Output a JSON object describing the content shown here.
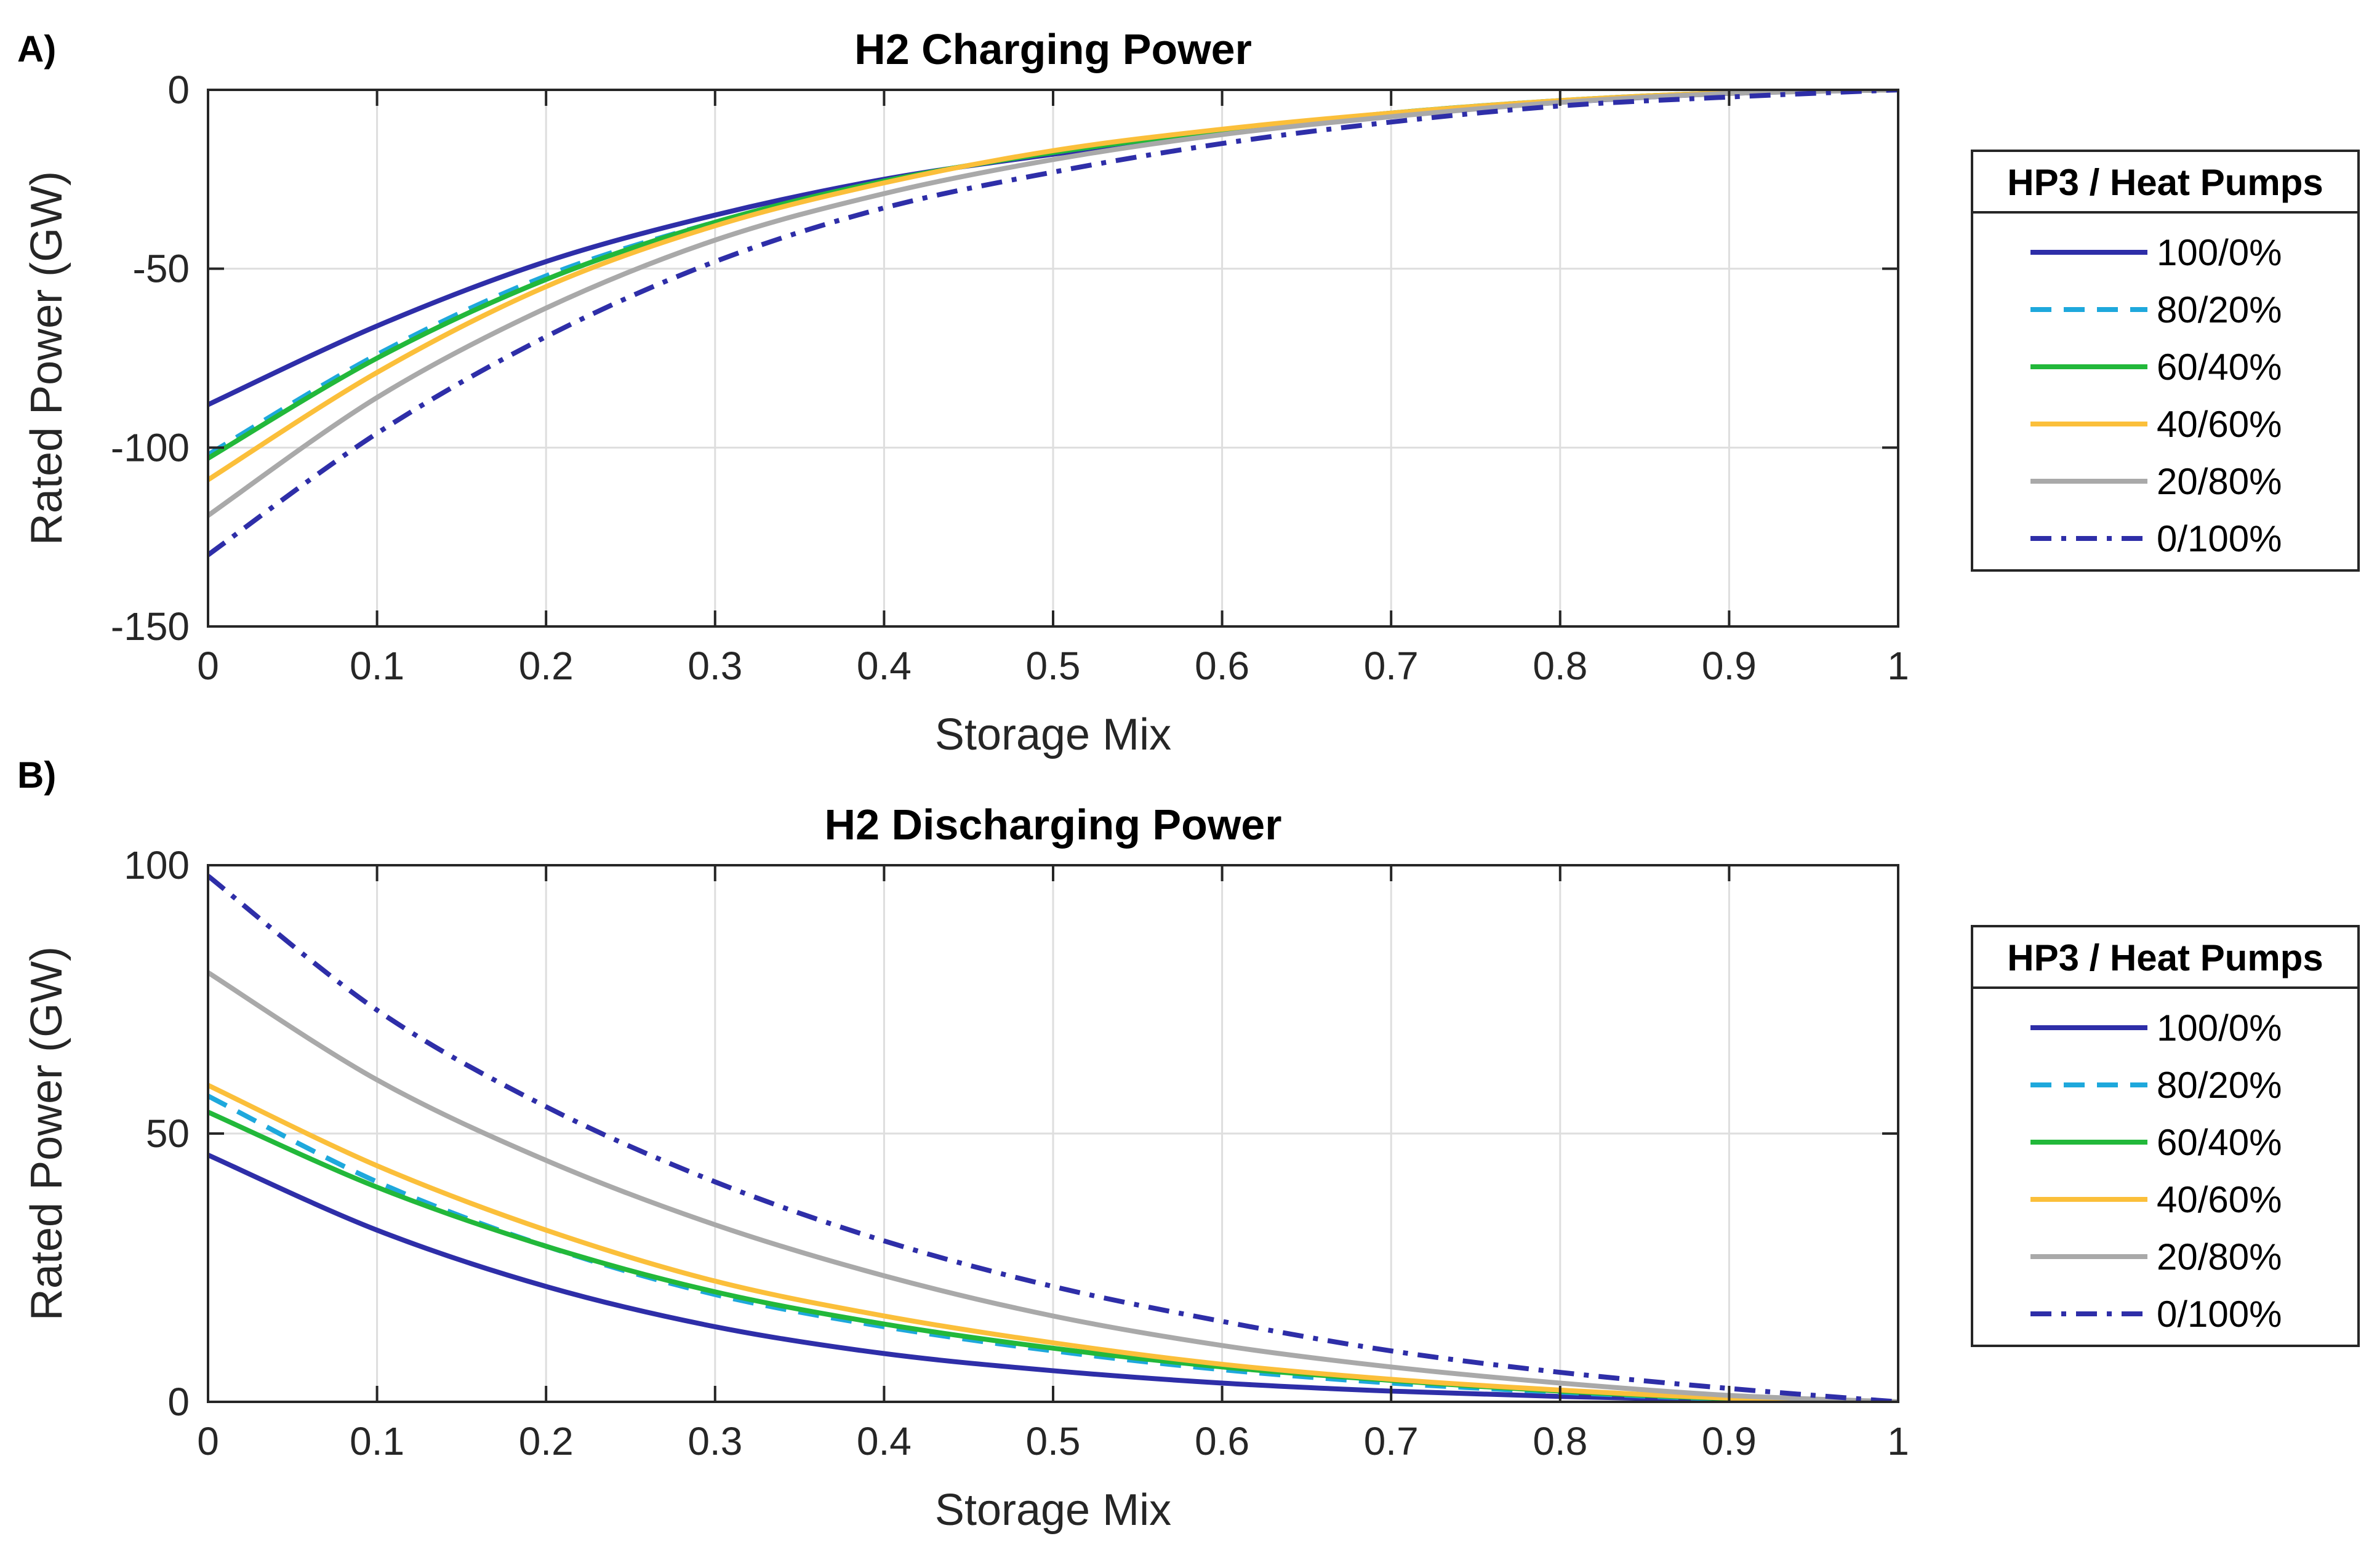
{
  "chart_data": [
    {
      "type": "line",
      "panel_label": "A)",
      "title": "H2 Charging Power",
      "xlabel": "Storage Mix",
      "ylabel": "Rated Power (GW)",
      "xlim": [
        0,
        1
      ],
      "ylim": [
        -150,
        0
      ],
      "xticks": [
        0,
        0.1,
        0.2,
        0.3,
        0.4,
        0.5,
        0.6,
        0.7,
        0.8,
        0.9,
        1
      ],
      "xtick_labels": [
        "0",
        "0.1",
        "0.2",
        "0.3",
        "0.4",
        "0.5",
        "0.6",
        "0.7",
        "0.8",
        "0.9",
        "1"
      ],
      "yticks": [
        0,
        -50,
        -100,
        -150
      ],
      "ytick_labels": [
        "0",
        "-50",
        "-100",
        "-150"
      ],
      "grid": true,
      "legend_title": "HP3 / Heat Pumps",
      "legend_position": "right",
      "x": [
        0,
        0.1,
        0.2,
        0.3,
        0.4,
        0.5,
        0.6,
        0.7,
        0.8,
        0.9,
        1
      ],
      "series": [
        {
          "name": "100/0%",
          "color": "#2e2ea8",
          "dash": "solid",
          "values": [
            -88,
            -66,
            -48,
            -35,
            -25,
            -18,
            -12,
            -7,
            -3.5,
            -1,
            0
          ]
        },
        {
          "name": "80/20%",
          "color": "#1ea8dc",
          "dash": "dashed",
          "values": [
            -102,
            -74,
            -52,
            -37,
            -25.5,
            -17.5,
            -11.5,
            -6.5,
            -3,
            -0.8,
            0
          ]
        },
        {
          "name": "60/40%",
          "color": "#22b83a",
          "dash": "solid",
          "values": [
            -103,
            -75,
            -53,
            -37,
            -25.5,
            -17.5,
            -11.5,
            -6.5,
            -3,
            -0.8,
            0
          ]
        },
        {
          "name": "40/60%",
          "color": "#fbbf3a",
          "dash": "solid",
          "values": [
            -109,
            -79,
            -55,
            -38,
            -26,
            -17,
            -11,
            -6.5,
            -3,
            -0.8,
            0
          ]
        },
        {
          "name": "20/80%",
          "color": "#a9a9a9",
          "dash": "solid",
          "values": [
            -119,
            -86,
            -61,
            -42,
            -29,
            -19.5,
            -12.5,
            -7.5,
            -3.5,
            -1,
            0
          ]
        },
        {
          "name": "0/100%",
          "color": "#2e2ea8",
          "dash": "dashdot",
          "values": [
            -130,
            -96,
            -69,
            -48,
            -33,
            -23,
            -15,
            -9,
            -4.5,
            -2,
            0
          ]
        }
      ]
    },
    {
      "type": "line",
      "panel_label": "B)",
      "title": "H2 Discharging Power",
      "xlabel": "Storage Mix",
      "ylabel": "Rated Power (GW)",
      "xlim": [
        0,
        1
      ],
      "ylim": [
        0,
        100
      ],
      "xticks": [
        0,
        0.1,
        0.2,
        0.3,
        0.4,
        0.5,
        0.6,
        0.7,
        0.8,
        0.9,
        1
      ],
      "xtick_labels": [
        "0",
        "0.1",
        "0.2",
        "0.3",
        "0.4",
        "0.5",
        "0.6",
        "0.7",
        "0.8",
        "0.9",
        "1"
      ],
      "yticks": [
        0,
        50,
        100
      ],
      "ytick_labels": [
        "0",
        "50",
        "100"
      ],
      "grid": true,
      "legend_title": "HP3 / Heat Pumps",
      "legend_position": "right",
      "x": [
        0,
        0.1,
        0.2,
        0.3,
        0.4,
        0.5,
        0.6,
        0.7,
        0.8,
        0.9,
        1
      ],
      "series": [
        {
          "name": "100/0%",
          "color": "#2e2ea8",
          "dash": "solid",
          "values": [
            46,
            32,
            21.5,
            14,
            9,
            5.8,
            3.5,
            2,
            1,
            0.3,
            0
          ]
        },
        {
          "name": "80/20%",
          "color": "#1ea8dc",
          "dash": "dashed",
          "values": [
            57,
            41,
            29,
            20,
            14,
            9.5,
            6,
            3.5,
            1.8,
            0.5,
            0
          ]
        },
        {
          "name": "60/40%",
          "color": "#22b83a",
          "dash": "solid",
          "values": [
            54,
            40,
            29,
            20.5,
            14.5,
            10,
            6.5,
            4,
            2,
            0.6,
            0
          ]
        },
        {
          "name": "40/60%",
          "color": "#fbbf3a",
          "dash": "solid",
          "values": [
            59,
            44,
            32,
            22.5,
            16,
            11,
            7,
            4.2,
            2.2,
            0.7,
            0
          ]
        },
        {
          "name": "20/80%",
          "color": "#a9a9a9",
          "dash": "solid",
          "values": [
            80,
            60,
            45,
            33,
            23.5,
            16,
            10.5,
            6.5,
            3.5,
            1.2,
            0
          ]
        },
        {
          "name": "0/100%",
          "color": "#2e2ea8",
          "dash": "dashdot",
          "values": [
            98,
            73,
            55,
            41,
            30,
            21.5,
            15,
            9.5,
            5.5,
            2.5,
            0
          ]
        }
      ]
    }
  ]
}
